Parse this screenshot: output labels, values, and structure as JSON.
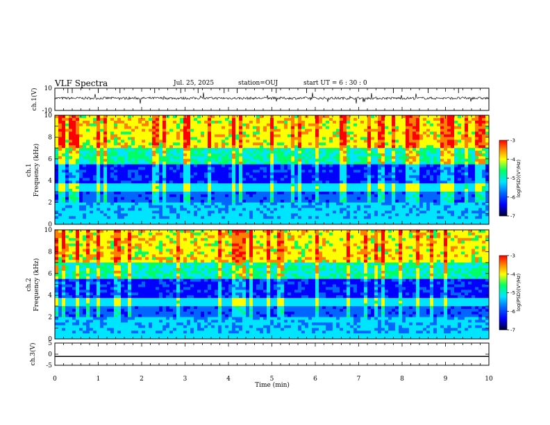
{
  "header": {
    "title": "VLF Spectra",
    "date": "Jul. 25, 2025",
    "station": "station=OUJ",
    "start_ut": "start UT = 6 : 30 : 0"
  },
  "chart_data": [
    {
      "type": "line",
      "ylabel": "ch.1(V)",
      "ylim": [
        -10,
        10
      ],
      "yticks": [
        "10",
        "-10"
      ],
      "x_range_min": [
        0,
        10
      ],
      "note_values": "continuous noisy waveform around ~0 V with impulsive spikes"
    },
    {
      "type": "heatmap",
      "ylabel_channel": "ch.1",
      "ylabel": "Frequency (kHz)",
      "ylim": [
        0,
        10
      ],
      "yticks": [
        "0",
        "2",
        "4",
        "6",
        "8",
        "10"
      ],
      "colorbar": {
        "label": "log(PSD)(V²/Hz)",
        "range": [
          -7,
          -3
        ],
        "ticks": [
          "-3",
          "-4",
          "-5",
          "-6",
          "-7"
        ]
      }
    },
    {
      "type": "heatmap",
      "ylabel_channel": "ch.2",
      "ylabel": "Frequency (kHz)",
      "ylim": [
        0,
        10
      ],
      "yticks": [
        "0",
        "2",
        "4",
        "6",
        "8",
        "10"
      ],
      "colorbar": {
        "label": "log(PSD)(V²/Hz)",
        "range": [
          -7,
          -3
        ],
        "ticks": [
          "-3",
          "-4",
          "-5",
          "-6",
          "-7"
        ]
      }
    },
    {
      "type": "line",
      "ylabel": "ch.3(V)",
      "ylim": [
        -5,
        5
      ],
      "yticks": [
        "5",
        "0",
        "-5"
      ],
      "value": -1
    }
  ],
  "xaxis": {
    "label": "Time (min)",
    "range": [
      0,
      10
    ],
    "ticks": [
      "0",
      "1",
      "2",
      "3",
      "4",
      "5",
      "6",
      "7",
      "8",
      "9",
      "10"
    ]
  },
  "colors": {
    "background": "#ffffff",
    "waveform": "#000000",
    "spectrogram_scale": [
      "#000033",
      "#0000ff",
      "#0066ff",
      "#00e5ff",
      "#00ff66",
      "#ffff00",
      "#ff8000",
      "#ff0000"
    ]
  }
}
